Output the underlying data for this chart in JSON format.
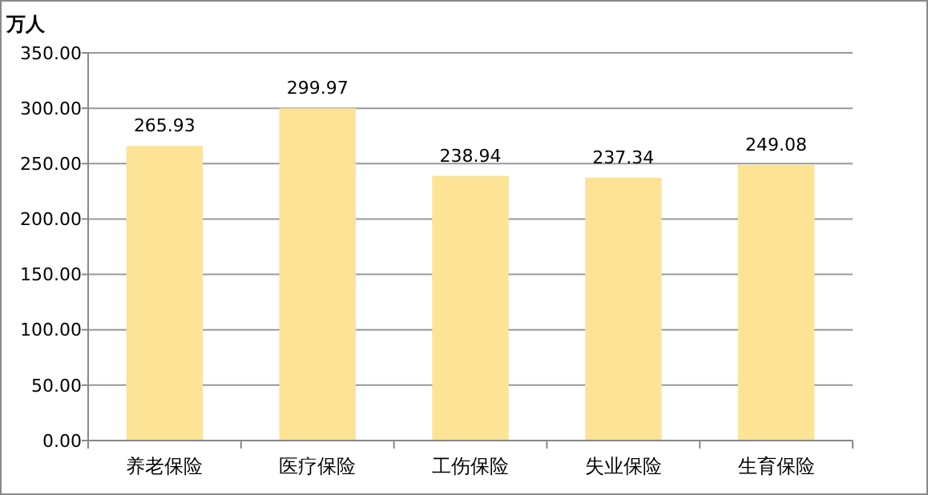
{
  "chart_data": {
    "type": "bar",
    "ylabel": "万人",
    "categories": [
      "养老保险",
      "医疗保险",
      "工伤保险",
      "失业保险",
      "生育保险"
    ],
    "values": [
      265.93,
      299.97,
      238.94,
      237.34,
      249.08
    ],
    "color": "#fde396",
    "ylim": [
      0,
      350
    ],
    "yticks": [
      {
        "value": 0,
        "label": "0.00"
      },
      {
        "value": 50,
        "label": "50.00"
      },
      {
        "value": 100,
        "label": "100.00"
      },
      {
        "value": 150,
        "label": "150.00"
      },
      {
        "value": 200,
        "label": "200.00"
      },
      {
        "value": 250,
        "label": "250.00"
      },
      {
        "value": 300,
        "label": "300.00"
      },
      {
        "value": 350,
        "label": "350.00"
      }
    ],
    "grid": "y",
    "data_labels": true
  }
}
